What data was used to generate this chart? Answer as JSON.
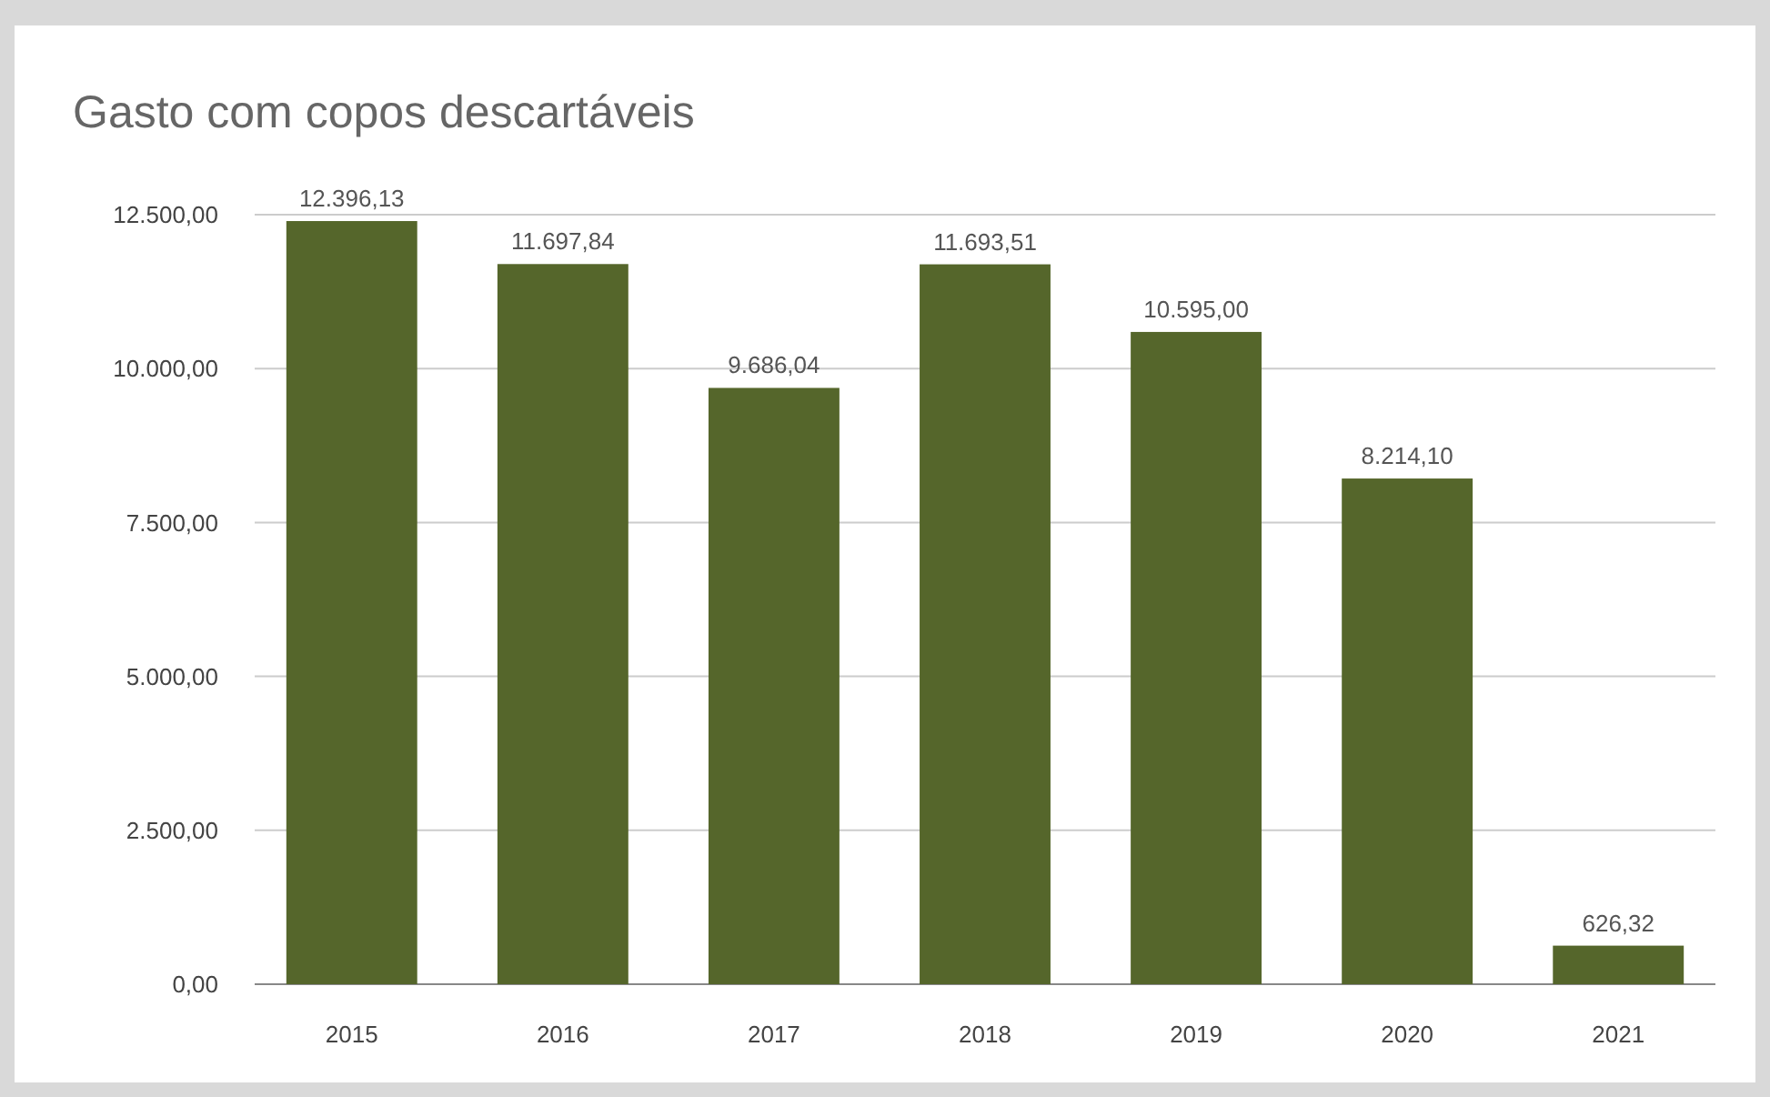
{
  "chart_data": {
    "type": "bar",
    "title": "Gasto com copos descartáveis",
    "categories": [
      "2015",
      "2016",
      "2017",
      "2018",
      "2019",
      "2020",
      "2021"
    ],
    "values": [
      12396.13,
      11697.84,
      9686.04,
      11693.51,
      10595.0,
      8214.1,
      626.32
    ],
    "value_labels": [
      "12.396,13",
      "11.697,84",
      "9.686,04",
      "11.693,51",
      "10.595,00",
      "8.214,10",
      "626,32"
    ],
    "color": "#55662b",
    "ylim": [
      0,
      12500
    ],
    "yticks": [
      {
        "value": 0,
        "label": "0,00"
      },
      {
        "value": 2500,
        "label": "2.500,00"
      },
      {
        "value": 5000,
        "label": "5.000,00"
      },
      {
        "value": 7500,
        "label": "7.500,00"
      },
      {
        "value": 10000,
        "label": "10.000,00"
      },
      {
        "value": 12500,
        "label": "12.500,00"
      }
    ],
    "grid": "y"
  }
}
